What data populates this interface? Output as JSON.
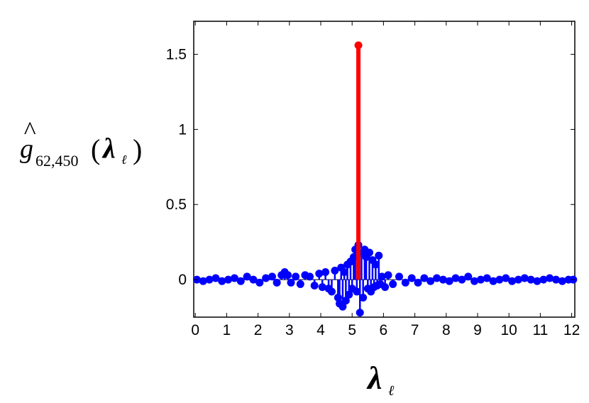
{
  "chart_data": {
    "type": "stem",
    "title": "",
    "xlabel": {
      "main": "λ",
      "sub": "ℓ"
    },
    "ylabel": {
      "hat": "^",
      "main": "g",
      "sub": "62,450",
      "paren_open": "(",
      "arg": "λ",
      "arg_sub": "ℓ",
      "paren_close": ")"
    },
    "xlim": [
      -0.05,
      12.1
    ],
    "ylim": [
      -0.25,
      1.72
    ],
    "xticks": [
      0,
      1,
      2,
      3,
      4,
      5,
      6,
      7,
      8,
      9,
      10,
      11,
      12
    ],
    "xtick_labels": [
      "0",
      "1",
      "2",
      "3",
      "4",
      "5",
      "6",
      "7",
      "8",
      "9",
      "10",
      "11",
      "12"
    ],
    "yticks": [
      0,
      0.5,
      1,
      1.5
    ],
    "ytick_labels": [
      "0",
      "0.5",
      "1",
      "1.5"
    ],
    "grid": false,
    "baseline": 0,
    "colors": {
      "main_series": "#0000ff",
      "highlight": "#ff0000",
      "axis": "#000000"
    },
    "series": [
      {
        "role": "spectral-coefficients",
        "color": "#0000ff",
        "x": [
          0.05,
          0.25,
          0.45,
          0.65,
          0.85,
          1.05,
          1.25,
          1.45,
          1.65,
          1.85,
          2.05,
          2.25,
          2.45,
          2.6,
          2.75,
          2.85,
          2.95,
          3.05,
          3.2,
          3.35,
          3.5,
          3.65,
          3.8,
          3.95,
          4.05,
          4.15,
          4.25,
          4.35,
          4.45,
          4.55,
          4.6,
          4.65,
          4.7,
          4.75,
          4.8,
          4.85,
          4.9,
          4.95,
          5.0,
          5.05,
          5.1,
          5.15,
          5.2,
          5.25,
          5.3,
          5.35,
          5.4,
          5.45,
          5.5,
          5.55,
          5.6,
          5.65,
          5.7,
          5.75,
          5.8,
          5.85,
          5.9,
          5.95,
          6.05,
          6.15,
          6.3,
          6.5,
          6.7,
          6.9,
          7.1,
          7.3,
          7.5,
          7.7,
          7.9,
          8.1,
          8.3,
          8.5,
          8.7,
          8.9,
          9.1,
          9.3,
          9.5,
          9.7,
          9.9,
          10.1,
          10.3,
          10.5,
          10.7,
          10.9,
          11.1,
          11.3,
          11.5,
          11.7,
          11.9,
          12.05
        ],
        "y": [
          0.0,
          -0.01,
          0.0,
          0.01,
          -0.01,
          0.0,
          0.01,
          -0.01,
          0.02,
          0.0,
          -0.02,
          0.01,
          0.02,
          -0.02,
          0.03,
          0.05,
          0.03,
          -0.02,
          0.02,
          -0.03,
          0.03,
          0.02,
          -0.04,
          0.04,
          -0.05,
          0.05,
          -0.06,
          -0.08,
          0.06,
          -0.12,
          -0.16,
          0.08,
          -0.18,
          0.05,
          -0.14,
          0.1,
          -0.1,
          0.12,
          -0.06,
          0.15,
          0.2,
          -0.08,
          0.23,
          -0.22,
          0.18,
          -0.12,
          0.2,
          0.15,
          -0.06,
          0.18,
          -0.08,
          0.13,
          -0.05,
          0.1,
          -0.04,
          0.16,
          -0.03,
          0.02,
          -0.05,
          0.03,
          -0.03,
          0.02,
          -0.02,
          0.01,
          -0.02,
          0.01,
          -0.01,
          0.01,
          0.0,
          -0.01,
          0.01,
          0.0,
          0.02,
          -0.01,
          0.0,
          0.01,
          -0.01,
          0.0,
          0.01,
          -0.01,
          0.0,
          0.01,
          0.0,
          -0.01,
          0.0,
          0.01,
          0.0,
          -0.01,
          0.0,
          0.0
        ]
      },
      {
        "role": "highlight",
        "color": "#ff0000",
        "x": [
          5.2
        ],
        "y": [
          1.56
        ]
      }
    ]
  }
}
